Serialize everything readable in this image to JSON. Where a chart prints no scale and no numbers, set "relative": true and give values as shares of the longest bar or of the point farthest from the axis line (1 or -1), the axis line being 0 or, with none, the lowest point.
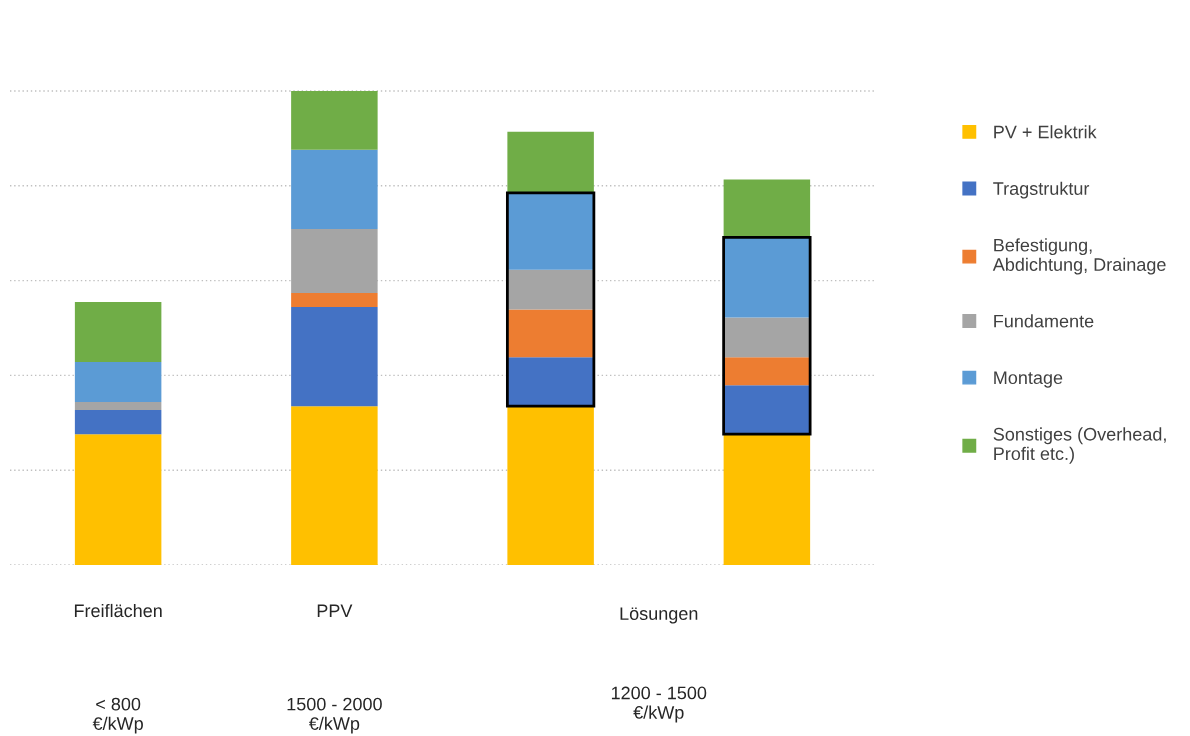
{
  "chart_data": {
    "type": "bar",
    "stacked": true,
    "relative": true,
    "grid": "y",
    "legend": "right",
    "categories": [
      "Freiflächen",
      "PPV",
      null,
      null
    ],
    "series": [
      {
        "name": "PV + Elektrik",
        "color": "#ffc000",
        "values": [
          0.276,
          0.335,
          0.335,
          0.276
        ]
      },
      {
        "name": "Tragstruktur",
        "color": "#4472c4",
        "values": [
          0.051,
          0.209,
          0.103,
          0.103
        ]
      },
      {
        "name": "Befestigung,\nAbdichtung, Drainage",
        "color": "#ed7d31",
        "values": [
          0,
          0.03,
          0.101,
          0.059
        ]
      },
      {
        "name": "Fundamente",
        "color": "#a5a5a5",
        "values": [
          0.017,
          0.135,
          0.084,
          0.084
        ]
      },
      {
        "name": "Montage",
        "color": "#5b9bd5",
        "values": [
          0.084,
          0.167,
          0.162,
          0.169
        ]
      },
      {
        "name": "Sonstiges (Overhead,\nProfit etc.)",
        "color": "#70ad47",
        "values": [
          0.127,
          0.124,
          0.129,
          0.122
        ]
      }
    ],
    "annotations": [
      "Lösungen",
      "< 800\n€/kWp",
      "1500 - 2000\n€/kWp",
      "1200 - 1500\n€/kWp"
    ]
  }
}
